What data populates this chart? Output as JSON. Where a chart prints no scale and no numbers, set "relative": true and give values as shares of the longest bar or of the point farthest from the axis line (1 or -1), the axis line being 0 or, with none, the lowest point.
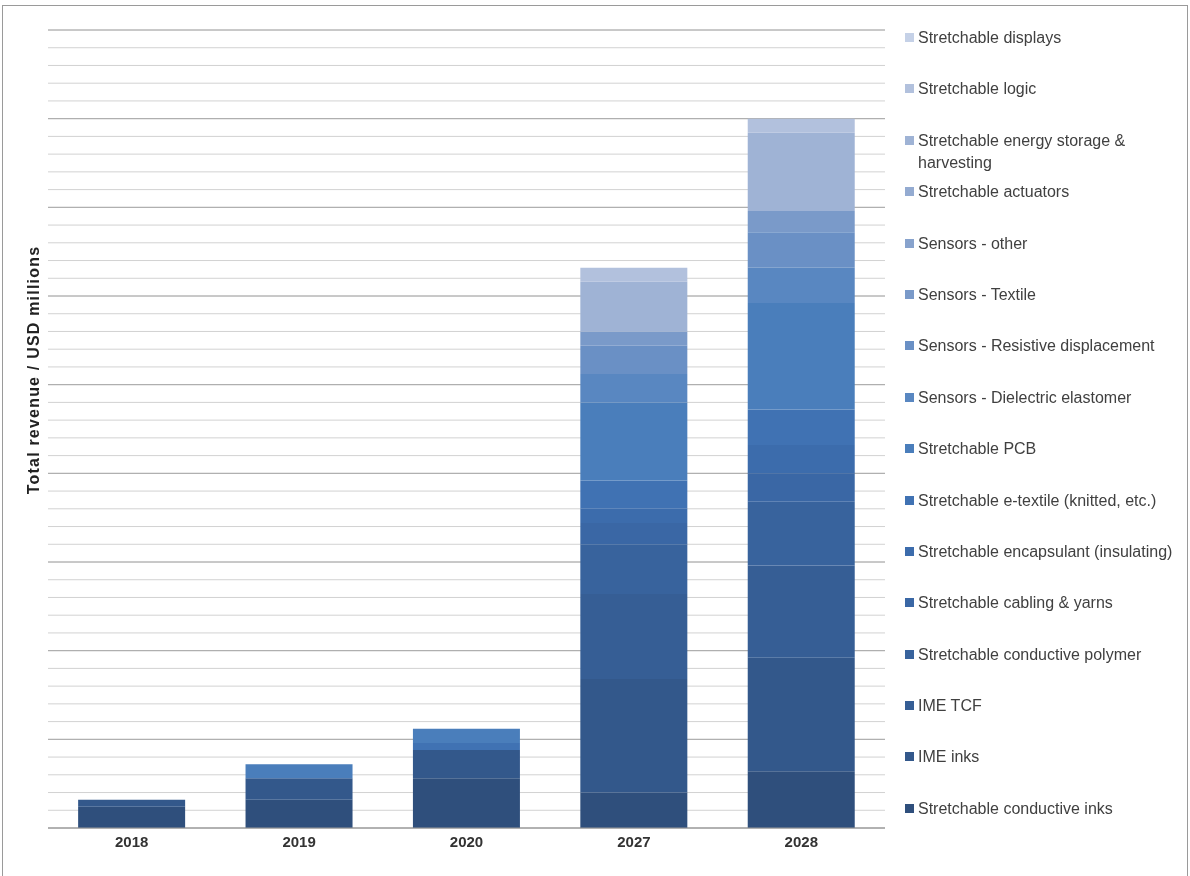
{
  "chart_data": {
    "type": "bar",
    "stacked": true,
    "relative": true,
    "ylabel": "Total revenue / USD millions",
    "categories": [
      "2018",
      "2019",
      "2020",
      "2027",
      "2028"
    ],
    "grid": "y",
    "legend": "right",
    "series": [
      {
        "name": "Stretchable conductive inks",
        "color": "#2f4f7c",
        "values": [
          0.03,
          0.04,
          0.07,
          0.05,
          0.08
        ]
      },
      {
        "name": "IME inks",
        "color": "#33588b",
        "values": [
          0.01,
          0.03,
          0.04,
          0.16,
          0.16
        ]
      },
      {
        "name": "IME TCF",
        "color": "#365e95",
        "values": [
          0,
          0,
          0,
          0.12,
          0.13
        ]
      },
      {
        "name": "Stretchable conductive polymer",
        "color": "#38639d",
        "values": [
          0,
          0,
          0,
          0.07,
          0.09
        ]
      },
      {
        "name": "Stretchable cabling & yarns",
        "color": "#3a67a5",
        "values": [
          0,
          0,
          0,
          0.03,
          0.04
        ]
      },
      {
        "name": "Stretchable encapsulant (insulating)",
        "color": "#3c6cac",
        "values": [
          0,
          0,
          0,
          0.02,
          0.04
        ]
      },
      {
        "name": "Stretchable e-textile (knitted, etc.)",
        "color": "#4072b3",
        "values": [
          0,
          0,
          0.01,
          0.04,
          0.05
        ]
      },
      {
        "name": "Stretchable PCB",
        "color": "#4a7ebb",
        "values": [
          0,
          0.02,
          0.02,
          0.11,
          0.15
        ]
      },
      {
        "name": "Sensors - Dielectric elastomer",
        "color": "#5987c1",
        "values": [
          0,
          0,
          0,
          0.04,
          0.05
        ]
      },
      {
        "name": "Sensors - Resistive displacement",
        "color": "#6a90c5",
        "values": [
          0,
          0,
          0,
          0.04,
          0.05
        ]
      },
      {
        "name": "Sensors - Textile",
        "color": "#7a9ac9",
        "values": [
          0,
          0,
          0,
          0.02,
          0.03
        ]
      },
      {
        "name": "Sensors - other",
        "color": "#88a3cd",
        "values": [
          0,
          0,
          0,
          0,
          0
        ]
      },
      {
        "name": "Stretchable actuators",
        "color": "#94abd1",
        "values": [
          0,
          0,
          0,
          0,
          0
        ]
      },
      {
        "name": "Stretchable energy storage & harvesting",
        "color": "#9fb3d5",
        "values": [
          0,
          0,
          0,
          0.07,
          0.11
        ]
      },
      {
        "name": "Stretchable logic",
        "color": "#b2c1dd",
        "values": [
          0,
          0,
          0,
          0.02,
          0.02
        ]
      },
      {
        "name": "Stretchable displays",
        "color": "#c5d1e7",
        "values": [
          0,
          0,
          0,
          0,
          0
        ]
      }
    ]
  }
}
